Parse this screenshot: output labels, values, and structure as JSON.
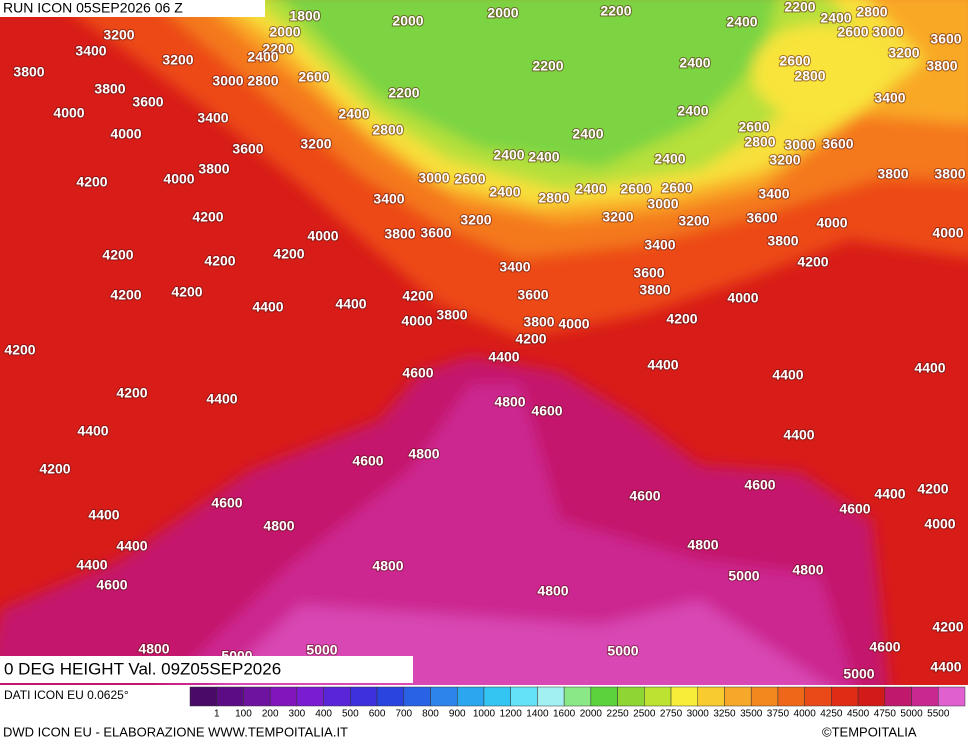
{
  "header": {
    "run": "RUN ICON 05SEP2026 06 Z"
  },
  "map": {
    "contour_labels": [
      1800,
      2000,
      2000,
      2200,
      2400,
      2200,
      2400,
      2800,
      3200,
      2000,
      2200,
      2600,
      3000,
      3600,
      3400,
      3200,
      2400,
      2200,
      2400,
      2600,
      3200,
      3800,
      3000,
      2800,
      2600,
      2800,
      3800,
      3800,
      3600,
      2200,
      3400,
      4000,
      3400,
      2400,
      2400,
      2800,
      2600,
      4000,
      3600,
      3200,
      2400,
      2800,
      3000,
      3600,
      2400,
      2400,
      2400,
      3200,
      4200,
      4000,
      3800,
      3000,
      2600,
      3800,
      3800,
      2400,
      2400,
      2600,
      2600,
      2800,
      3000,
      3400,
      3400,
      4200,
      3200,
      3200,
      3200,
      3600,
      4000,
      4000,
      3800,
      3600,
      3400,
      3800,
      4000,
      4200,
      4200,
      4200,
      3400,
      3600,
      4200,
      4200,
      4200,
      3600,
      3800,
      4000,
      4200,
      4400,
      4400,
      4000,
      3800,
      4200,
      3800,
      4000,
      4200,
      4200,
      4400,
      4400,
      4400,
      4600,
      4400,
      4200,
      4400,
      4800,
      4600,
      4400,
      4400,
      4600,
      4800,
      4200,
      4200,
      4600,
      4600,
      4400,
      4600,
      4600,
      4400,
      4000,
      4800,
      4400,
      4800,
      4400,
      4800,
      5000,
      4800,
      4600,
      4800,
      4200,
      4800,
      5000,
      5000,
      4600,
      5000,
      4400,
      5000
    ]
  },
  "footer": {
    "title": "0 DEG HEIGHT Val. 09Z05SEP2026",
    "source": "DATI ICON EU 0.0625°",
    "credit": "DWD ICON EU - ELABORAZIONE WWW.TEMPOITALIA.IT",
    "copyright": "©TEMPOITALIA"
  },
  "colorbar": {
    "labels": [
      1,
      100,
      200,
      300,
      400,
      500,
      600,
      700,
      800,
      900,
      1000,
      1200,
      1400,
      1600,
      2000,
      2250,
      2500,
      2750,
      3000,
      3250,
      3500,
      3750,
      4000,
      4250,
      4500,
      4750,
      5000,
      5500
    ],
    "colors": [
      "#4a0a68",
      "#5c0d86",
      "#6e12a0",
      "#8216bc",
      "#7a1cd2",
      "#5a24d8",
      "#3e30dc",
      "#2a44e0",
      "#2a62e6",
      "#2d84ea",
      "#2ca6ee",
      "#34c6f2",
      "#64e2f6",
      "#a2f0f2",
      "#8ae886",
      "#5cd23c",
      "#8ed634",
      "#bee232",
      "#f8ee3a",
      "#f8cc2e",
      "#f6a82a",
      "#f3881f",
      "#ef681a",
      "#e94a17",
      "#e02c15",
      "#d21a18",
      "#c0186a",
      "#c82890",
      "#e060d0"
    ]
  }
}
